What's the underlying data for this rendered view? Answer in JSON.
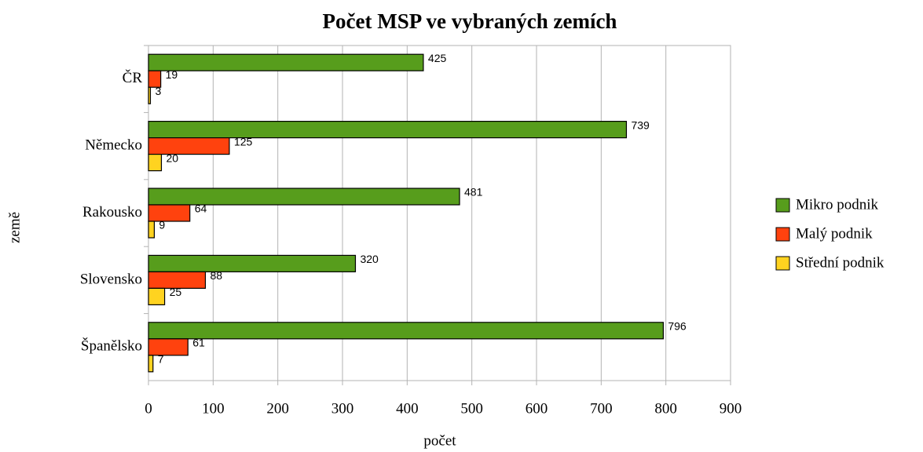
{
  "chart_data": {
    "type": "bar",
    "orientation": "horizontal",
    "title": "Počet MSP ve vybraných zemích",
    "xlabel": "počet",
    "ylabel": "země",
    "categories": [
      "ČR",
      "Německo",
      "Rakousko",
      "Slovensko",
      "Španělsko"
    ],
    "series": [
      {
        "name": "Mikro podnik",
        "color": "#579d1c",
        "values": [
          425,
          739,
          481,
          320,
          796
        ]
      },
      {
        "name": "Malý podnik",
        "color": "#ff420e",
        "values": [
          19,
          125,
          64,
          88,
          61
        ]
      },
      {
        "name": "Střední podnik",
        "color": "#ffd320",
        "values": [
          3,
          20,
          9,
          25,
          7
        ]
      }
    ],
    "xlim": [
      0,
      900
    ],
    "xticks": [
      0,
      100,
      200,
      300,
      400,
      500,
      600,
      700,
      800,
      900
    ],
    "grid": true,
    "legend": "right"
  }
}
